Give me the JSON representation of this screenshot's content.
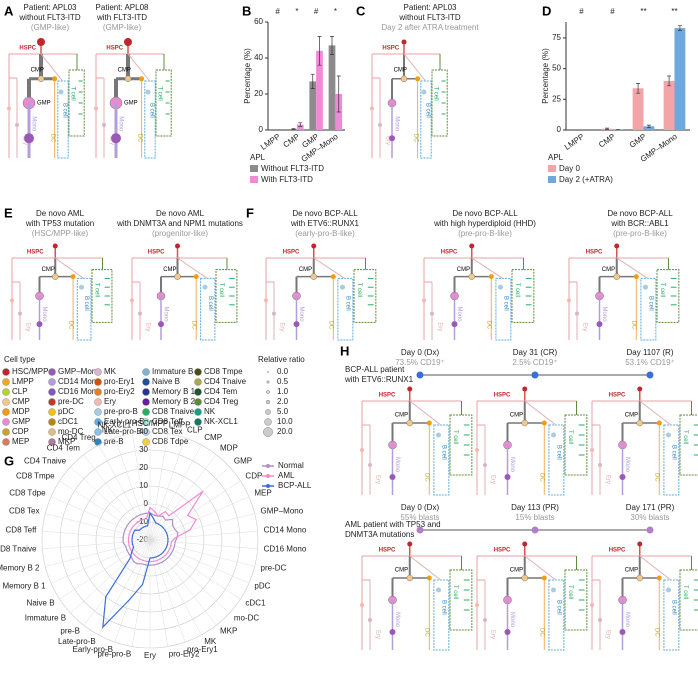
{
  "letters": [
    "A",
    "B",
    "C",
    "D",
    "E",
    "F",
    "G",
    "H"
  ],
  "trees": [
    {
      "title": [
        "Patient: APL03",
        "without FLT3-ITD",
        "(GMP-like)"
      ]
    },
    {
      "title": [
        "Patient: APL08",
        "with FLT3-ITD",
        "(GMP-like)"
      ]
    },
    {
      "title": [
        "Patient: APL03",
        "without FLT3-ITD",
        "Day 2 after ATRA treatment"
      ]
    },
    {
      "title": [
        "De novo AML",
        "with TP53 mutation",
        "(HSC/MPP-like)"
      ]
    },
    {
      "title": [
        "De novo AML",
        "with DNMT3A and NPM1 mutations",
        "(progenitor-like)"
      ]
    },
    {
      "title": [
        "De novo BCP-ALL",
        "with ETV6::RUNX1",
        "(early-pro-B-like)"
      ]
    },
    {
      "title": [
        "De novo BCP-ALL",
        "with high hyperdiploid (HHD)",
        "(pre-pro-B-like)"
      ]
    },
    {
      "title": [
        "De novo BCP-ALL",
        "with BCR::ABL1",
        "(pre-pro-B-like)"
      ]
    }
  ],
  "tree_labels": {
    "hspc": "HSPC",
    "cmp": "CMP",
    "gmp": "GMP",
    "dc": "DC",
    "mono": "Mono",
    "b": "B cell",
    "t": "T cell",
    "ery": "Ery"
  },
  "h_groups": [
    {
      "title": [
        "BCP-ALL patient",
        "with ETV6::RUNX1"
      ],
      "color": "#3a6fd8",
      "timepoints": [
        {
          "day": "Day 0 (Dx)",
          "note": "73.5% CD19⁺"
        },
        {
          "day": "Day 31 (CR)",
          "note": "2.5% CD19⁺"
        },
        {
          "day": "Day 1107 (R)",
          "note": "53.1% CD19⁺"
        }
      ]
    },
    {
      "title": [
        "AML patient with TP53 and",
        "DNMT3A mutations"
      ],
      "color": "#b07fc7",
      "timepoints": [
        {
          "day": "Day 0 (Dx)",
          "note": "55% blasts"
        },
        {
          "day": "Day 113 (PR)",
          "note": "15% blasts"
        },
        {
          "day": "Day 171 (PR)",
          "note": "30% blasts"
        }
      ]
    }
  ],
  "cell_type_legend": {
    "title": "Cell type",
    "items": [
      {
        "name": "HSC/MPP",
        "color": "#c0262d"
      },
      {
        "name": "LMPP",
        "color": "#f5a623"
      },
      {
        "name": "CLP",
        "color": "#b5d334"
      },
      {
        "name": "CMP",
        "color": "#f3c88a"
      },
      {
        "name": "MDP",
        "color": "#f39c12"
      },
      {
        "name": "GMP",
        "color": "#e88bd1"
      },
      {
        "name": "CDP",
        "color": "#c9a227"
      },
      {
        "name": "MEP",
        "color": "#d97a5a"
      },
      {
        "name": "GMP–Mono",
        "color": "#9b59b6"
      },
      {
        "name": "CD14 Mono",
        "color": "#b39ddb"
      },
      {
        "name": "CD16 Mono",
        "color": "#7e57c2"
      },
      {
        "name": "pre-DC",
        "color": "#c0392b"
      },
      {
        "name": "pDC",
        "color": "#f1c40f"
      },
      {
        "name": "cDC1",
        "color": "#b8860b"
      },
      {
        "name": "mo-DC",
        "color": "#e0c080"
      },
      {
        "name": "MKP",
        "color": "#b07aa1"
      },
      {
        "name": "MK",
        "color": "#d8b5c8"
      },
      {
        "name": "pro-Ery1",
        "color": "#d35400"
      },
      {
        "name": "pro-Ery2",
        "color": "#e67e22"
      },
      {
        "name": "Ery",
        "color": "#f5b7b1"
      },
      {
        "name": "pre-pro-B",
        "color": "#a9cce3"
      },
      {
        "name": "Early-pro-B",
        "color": "#5dade2"
      },
      {
        "name": "Late-pro-B",
        "color": "#85c1e9"
      },
      {
        "name": "pre-B",
        "color": "#2e86c1"
      },
      {
        "name": "Immature B",
        "color": "#7fb3d5"
      },
      {
        "name": "Naive B",
        "color": "#1f4e9c"
      },
      {
        "name": "Memory B 1",
        "color": "#283593"
      },
      {
        "name": "Memory B 2",
        "color": "#6a1b9a"
      },
      {
        "name": "CD8 Tnaive",
        "color": "#27ae60"
      },
      {
        "name": "CD8 Teff",
        "color": "#a3e4d7"
      },
      {
        "name": "CD8 Tex",
        "color": "#aed6f1"
      },
      {
        "name": "CD8 Tdpe",
        "color": "#f4d03f"
      },
      {
        "name": "CD8 Tmpe",
        "color": "#4d4d1a"
      },
      {
        "name": "CD4 Tnaive",
        "color": "#a9a94a"
      },
      {
        "name": "CD4 Tem",
        "color": "#1e5631"
      },
      {
        "name": "CD4 Treg",
        "color": "#5b8c3a"
      },
      {
        "name": "NK",
        "color": "#16a085"
      },
      {
        "name": "NK-XCL1",
        "color": "#117864"
      }
    ]
  },
  "relative_ratio": {
    "title": "Relative ratio",
    "levels": [
      {
        "value": 0,
        "label": "0.0"
      },
      {
        "value": 0.5,
        "label": "0.5"
      },
      {
        "value": 1,
        "label": "1.0"
      },
      {
        "value": 2,
        "label": "2.0"
      },
      {
        "value": 5,
        "label": "5.0"
      },
      {
        "value": 10,
        "label": "10.0"
      },
      {
        "value": 20,
        "label": "20.0"
      }
    ]
  },
  "chart_data": [
    {
      "type": "bar",
      "ylabel": "Percentage (%)",
      "legend_title": "APL",
      "categories": [
        "LMPP",
        "CMP",
        "GMP",
        "GMP–Mono"
      ],
      "annotations": [
        "#",
        "*",
        "#",
        "*"
      ],
      "series": [
        {
          "name": "Without FLT3-ITD",
          "color": "#8c8c8c",
          "values": [
            0,
            0.5,
            27,
            47
          ],
          "errors": [
            0,
            0.3,
            4,
            5
          ]
        },
        {
          "name": "With FLT3-ITD",
          "color": "#f08ad8",
          "values": [
            0,
            3,
            44,
            20
          ],
          "errors": [
            0,
            1,
            8,
            10
          ]
        }
      ],
      "ylim": [
        0,
        60
      ],
      "yticks": [
        0,
        20,
        40,
        60
      ]
    },
    {
      "type": "bar",
      "ylabel": "Percentage (%)",
      "legend_title": "APL",
      "categories": [
        "LMPP",
        "CMP",
        "GMP",
        "GMP–Mono"
      ],
      "annotations": [
        "#",
        "#",
        "**",
        "**"
      ],
      "series": [
        {
          "name": "Day 0",
          "color": "#f4a3a8",
          "values": [
            0,
            1,
            34,
            40
          ],
          "errors": [
            0,
            0.5,
            4,
            4
          ]
        },
        {
          "name": "Day 2 (+ATRA)",
          "color": "#6fa8dc",
          "values": [
            0,
            0.2,
            3,
            83
          ],
          "errors": [
            0,
            0.1,
            1,
            2
          ]
        }
      ],
      "ylim": [
        0,
        88
      ],
      "yticks": [
        0,
        25,
        50,
        75
      ]
    },
    {
      "type": "radar",
      "categories": [
        "HSC/MPP",
        "LMPP",
        "CLP",
        "CMP",
        "MDP",
        "GMP",
        "CDP",
        "MEP",
        "GMP–Mono",
        "CD14 Mono",
        "CD16 Mono",
        "pre-DC",
        "pDC",
        "cDC1",
        "mo-DC",
        "MKP",
        "MK",
        "pro-Ery1",
        "pro-Ery2",
        "Ery",
        "pre-pro-B",
        "Early-pro-B",
        "Late-pro-B",
        "pre-B",
        "Immature B",
        "Naive B",
        "Memory B 1",
        "Memory B 2",
        "CD8 Tnaive",
        "CD8 Teff",
        "CD8 Tex",
        "CD8 Tdpe",
        "CD8 Tmpe",
        "CD4 Tnaive",
        "CD4 Tem",
        "CD4 Treg",
        "NK",
        "NK-XCL1"
      ],
      "series": [
        {
          "name": "Normal",
          "color": "#b08fc7",
          "values": [
            -5,
            -6,
            -6,
            -5,
            -6,
            -3,
            -5,
            -5,
            -4,
            -5,
            -6,
            -6,
            -6,
            -6,
            -6,
            -6,
            -6,
            -6,
            -6,
            -6,
            -6,
            -6,
            -5,
            -5,
            -6,
            -6,
            -6,
            -6,
            -5,
            -5,
            -5,
            -5,
            -5,
            -5,
            -5,
            -5,
            -5,
            -5
          ]
        },
        {
          "name": "AML",
          "color": "#f28ad0",
          "values": [
            -2,
            -4,
            -6,
            -2,
            -3,
            20,
            5,
            8,
            3,
            -6,
            -8,
            -8,
            -8,
            -8,
            -8,
            -8,
            -8,
            -8,
            -8,
            -8,
            -8,
            -8,
            -8,
            -8,
            -8,
            -8,
            -8,
            -8,
            -8,
            -8,
            -8,
            -8,
            -8,
            -8,
            -8,
            -8,
            -8,
            -8
          ]
        },
        {
          "name": "BCP-ALL",
          "color": "#3a6fd8",
          "values": [
            -5,
            -8,
            -10,
            -10,
            -10,
            -10,
            -10,
            -10,
            -10,
            -10,
            -10,
            -10,
            -10,
            -10,
            -10,
            -10,
            -10,
            -10,
            -10,
            -10,
            5,
            15,
            35,
            20,
            -5,
            -8,
            -10,
            -10,
            -10,
            -10,
            -10,
            -10,
            -10,
            -12,
            -12,
            -12,
            -12,
            -12
          ]
        }
      ],
      "rlim": [
        -20,
        40
      ],
      "rticks": [
        -20,
        -10,
        0,
        10,
        20,
        30,
        40
      ]
    }
  ]
}
